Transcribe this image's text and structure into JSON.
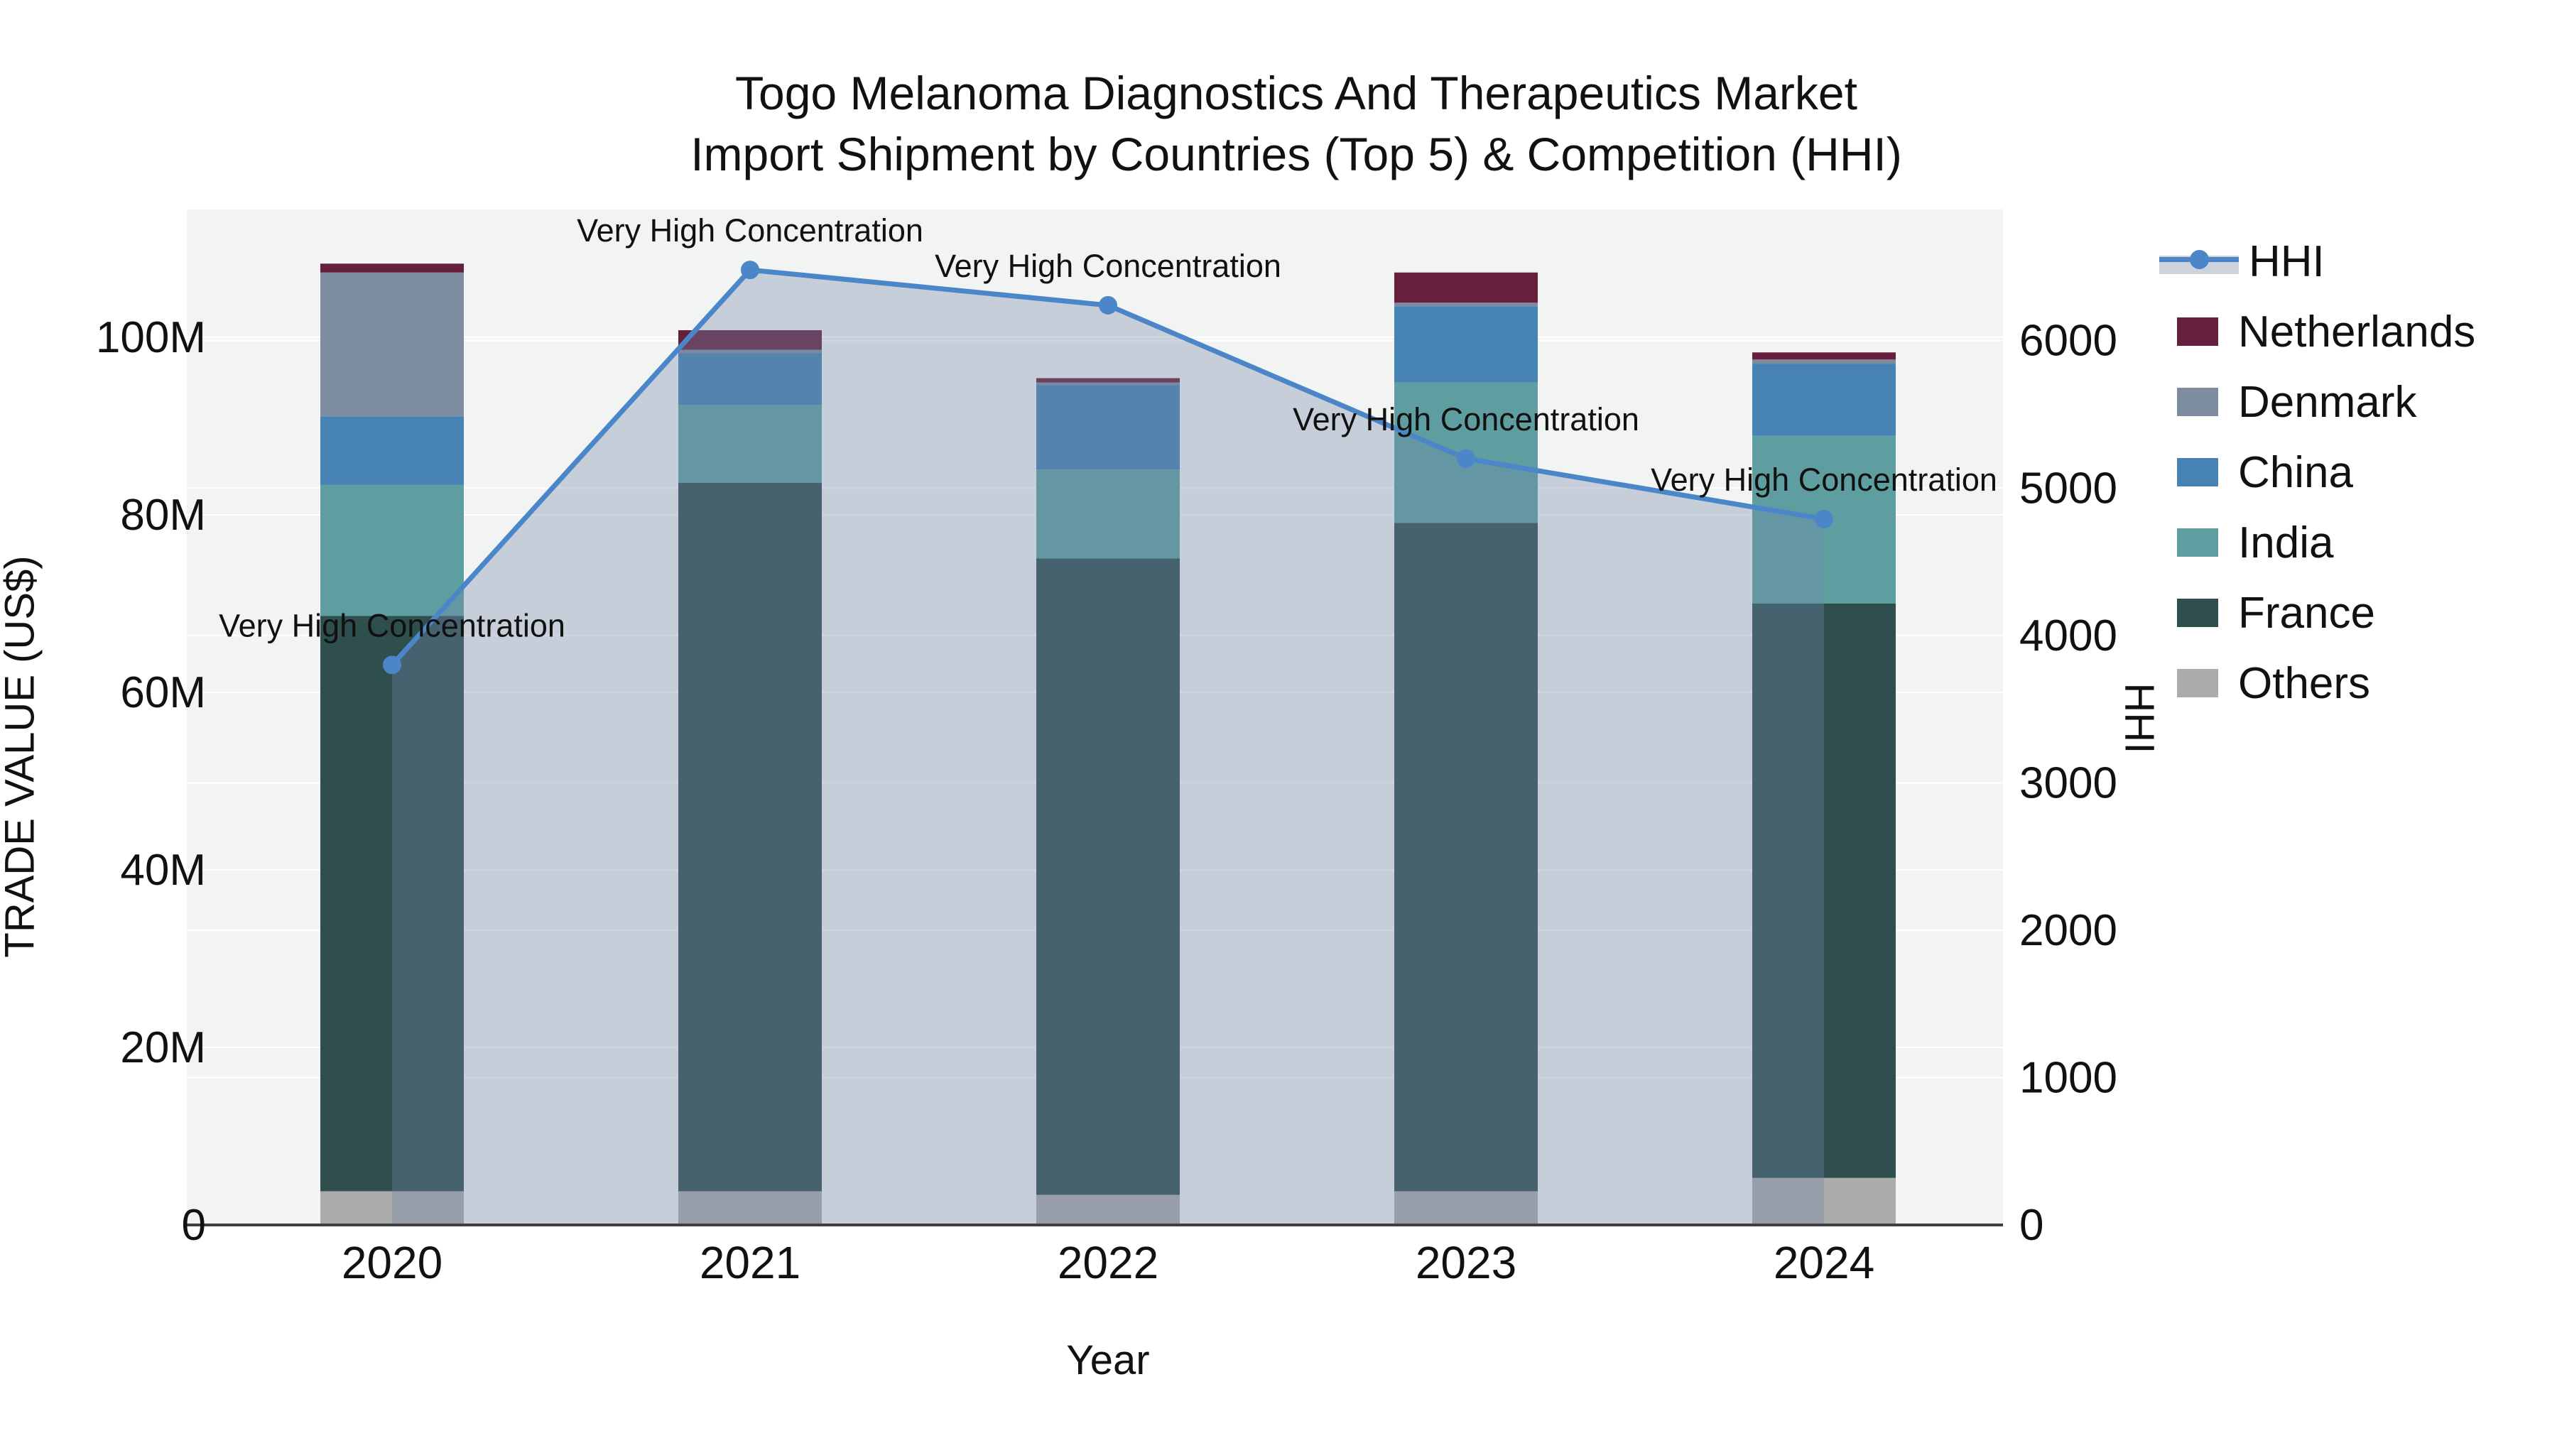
{
  "title": {
    "line1": "Togo Melanoma Diagnostics And Therapeutics Market",
    "line2": "Import Shipment by Countries (Top 5) & Competition (HHI)"
  },
  "axes": {
    "y_left": {
      "title": "TRADE VALUE (US$)",
      "tick_labels": [
        "0",
        "20M",
        "40M",
        "60M",
        "80M",
        "100M"
      ],
      "tick_values": [
        0,
        20,
        40,
        60,
        80,
        100
      ],
      "range": [
        0,
        114.4
      ]
    },
    "y_right": {
      "title": "HHI",
      "tick_labels": [
        "0",
        "1000",
        "2000",
        "3000",
        "4000",
        "5000",
        "6000"
      ],
      "tick_values": [
        0,
        1000,
        2000,
        3000,
        4000,
        5000,
        6000
      ],
      "range": [
        0,
        6890
      ]
    },
    "x": {
      "title": "Year"
    }
  },
  "legend": {
    "items": [
      {
        "label": "HHI",
        "type": "line",
        "color": "#4A86C8"
      },
      {
        "label": "Netherlands",
        "type": "swatch",
        "color": "#66203E"
      },
      {
        "label": "Denmark",
        "type": "swatch",
        "color": "#7D8C9F"
      },
      {
        "label": "China",
        "type": "swatch",
        "color": "#4682B4"
      },
      {
        "label": "India",
        "type": "swatch",
        "color": "#5F9EA0"
      },
      {
        "label": "France",
        "type": "swatch",
        "color": "#2F4F4F"
      },
      {
        "label": "Others",
        "type": "swatch",
        "color": "#ABABAB"
      }
    ]
  },
  "chart_data": {
    "type": "combo-stacked-bar-line",
    "categories": [
      "2020",
      "2021",
      "2022",
      "2023",
      "2024"
    ],
    "bar_unit": "US$ millions",
    "series": [
      {
        "name": "Others",
        "color": "#ABABAB",
        "values": [
          3.8,
          3.8,
          3.4,
          3.8,
          5.3
        ]
      },
      {
        "name": "France",
        "color": "#2F4F4F",
        "values": [
          64.8,
          79.8,
          71.7,
          75.3,
          64.7
        ]
      },
      {
        "name": "India",
        "color": "#5F9EA0",
        "values": [
          14.8,
          8.8,
          10.0,
          15.8,
          18.9
        ]
      },
      {
        "name": "China",
        "color": "#4682B4",
        "values": [
          7.7,
          5.8,
          9.5,
          8.6,
          8.1
        ]
      },
      {
        "name": "Denmark",
        "color": "#7D8C9F",
        "values": [
          16.2,
          0.4,
          0.3,
          0.4,
          0.5
        ]
      },
      {
        "name": "Netherlands",
        "color": "#66203E",
        "values": [
          1.0,
          2.2,
          0.5,
          3.4,
          0.8
        ]
      }
    ],
    "bar_totals": [
      108.3,
      100.8,
      95.4,
      107.3,
      98.3
    ],
    "line": {
      "name": "HHI",
      "color": "#4A86C8",
      "area_fill": "rgba(115,135,170,0.34)",
      "values": [
        3800,
        6480,
        6240,
        5200,
        4790
      ]
    },
    "annotations": [
      {
        "category": "2020",
        "text": "Very High Concentration"
      },
      {
        "category": "2021",
        "text": "Very High Concentration"
      },
      {
        "category": "2022",
        "text": "Very High Concentration"
      },
      {
        "category": "2023",
        "text": "Very High Concentration"
      },
      {
        "category": "2024",
        "text": "Very High Concentration"
      }
    ],
    "layout_hints": {
      "plot_bg": "#F2F3F3",
      "grid_color": "#FFFFFF",
      "axis_line_color": "#3F3F3F",
      "legend_position": "right",
      "grid": true
    }
  }
}
